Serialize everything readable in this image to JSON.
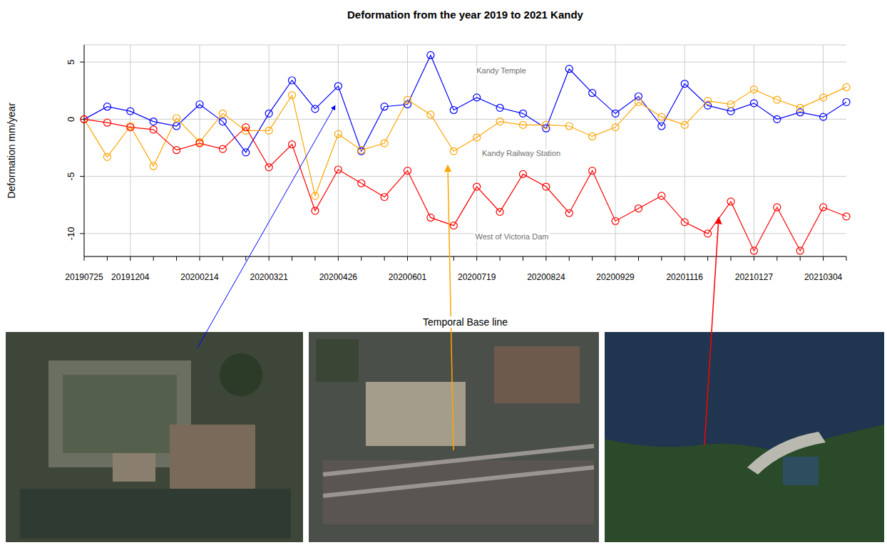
{
  "chart_data": {
    "type": "line",
    "title": "Deformation from the year 2019 to 2021 Kandy",
    "xlabel": "Temporal Base line",
    "ylabel": "Deformation mm/year",
    "categories": [
      "20190725",
      null,
      "20191204",
      null,
      null,
      "20200214",
      null,
      null,
      "20200321",
      null,
      null,
      "20200426",
      null,
      null,
      "20200601",
      null,
      null,
      "20200719",
      null,
      null,
      "20200824",
      null,
      null,
      "20200929",
      null,
      null,
      "20201116",
      null,
      null,
      "20210127",
      null,
      null,
      "20210304",
      null
    ],
    "series": [
      {
        "name": "Kandy Temple",
        "color": "#0000ff",
        "marker": "open_circle",
        "values": [
          0,
          1.1,
          0.7,
          -0.2,
          -0.6,
          1.3,
          -0.2,
          -2.9,
          0.5,
          3.4,
          0.9,
          2.9,
          -2.8,
          1.1,
          1.3,
          5.6,
          0.8,
          1.9,
          1.0,
          0.5,
          -0.8,
          4.4,
          2.3,
          0.5,
          2.0,
          -0.6,
          3.1,
          1.2,
          0.7,
          1.4,
          0.0,
          0.6,
          0.2,
          1.5
        ]
      },
      {
        "name": "Kandy Railway Station",
        "color": "#ffa500",
        "marker": "open_circle",
        "values": [
          0,
          -3.3,
          -0.6,
          -4.1,
          0.1,
          -2.0,
          0.5,
          -1.0,
          -1.0,
          2.1,
          -6.7,
          -1.3,
          -2.7,
          -2.1,
          1.7,
          0.4,
          -2.8,
          -1.6,
          -0.2,
          -0.5,
          -0.5,
          -0.6,
          -1.5,
          -0.7,
          1.5,
          0.2,
          -0.5,
          1.6,
          1.3,
          2.6,
          1.7,
          1.0,
          1.9,
          2.8
        ]
      },
      {
        "name": "West of Victoria Dam",
        "color": "#ff0000",
        "marker": "open_circle",
        "values": [
          0,
          -0.3,
          -0.7,
          -0.9,
          -2.7,
          -2.1,
          -2.6,
          -0.7,
          -4.2,
          -2.2,
          -8.0,
          -4.4,
          -5.6,
          -6.8,
          -4.5,
          -8.6,
          -9.3,
          -5.9,
          -8.1,
          -4.8,
          -5.9,
          -8.2,
          -4.5,
          -8.9,
          -7.8,
          -6.7,
          -9.0,
          -10.0,
          -7.2,
          -11.5,
          -7.7,
          -11.5,
          -7.7,
          -8.5
        ]
      }
    ],
    "ylim": [
      -12,
      6.5
    ],
    "yticks": [
      -10,
      -5,
      0,
      5
    ],
    "grid": true
  }
}
